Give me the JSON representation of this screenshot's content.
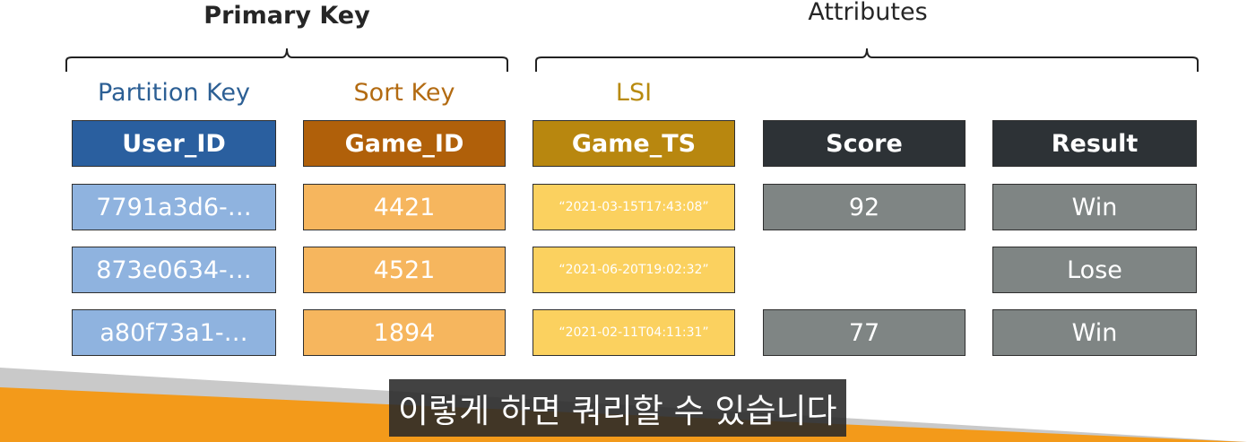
{
  "headings": {
    "primary_key": "Primary Key",
    "attributes": "Attributes"
  },
  "labels": {
    "partition_key": "Partition Key",
    "sort_key": "Sort Key",
    "lsi": "LSI"
  },
  "columns": [
    "User_ID",
    "Game_ID",
    "Game_TS",
    "Score",
    "Result"
  ],
  "rows": [
    {
      "user_id": "7791a3d6-…",
      "game_id": "4421",
      "game_ts": "“2021-03-15T17:43:08”",
      "score": "92",
      "result": "Win"
    },
    {
      "user_id": "873e0634-…",
      "game_id": "4521",
      "game_ts": "“2021-06-20T19:02:32”",
      "score": "",
      "result": "Lose"
    },
    {
      "user_id": "a80f73a1-…",
      "game_id": "1894",
      "game_ts": "“2021-02-11T04:11:31”",
      "score": "77",
      "result": "Win"
    }
  ],
  "subtitle": "이렇게 하면 쿼리할 수 있습니다",
  "colors": {
    "partition_header": "#2a5f9f",
    "partition_cell": "#8fb3df",
    "sort_header": "#b0600a",
    "sort_cell": "#f6b65e",
    "lsi_header": "#b8870f",
    "lsi_cell": "#fbd15f",
    "attr_header": "#2d3236",
    "attr_cell": "#7f8584",
    "band_orange": "#f39a1a"
  }
}
